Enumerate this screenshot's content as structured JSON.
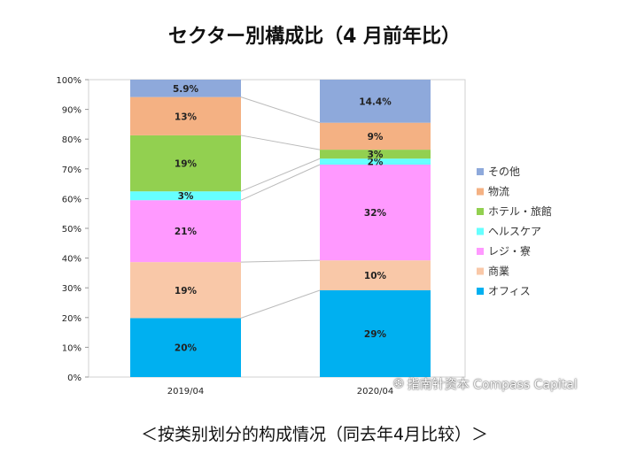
{
  "chart_data": {
    "type": "bar",
    "stacked": true,
    "title": "セクター別構成比（4 月前年比）",
    "caption": "＜按类别划分的构成情况（同去年4月比较）＞",
    "categories": [
      "2019/04",
      "2020/04"
    ],
    "ylim": [
      0,
      100
    ],
    "yticks": [
      "0%",
      "10%",
      "20%",
      "30%",
      "40%",
      "50%",
      "60%",
      "70%",
      "80%",
      "90%",
      "100%"
    ],
    "legend_position": "right",
    "series": [
      {
        "name": "オフィス",
        "color": "#00b0f0",
        "values": [
          20,
          29
        ],
        "labels": [
          "20%",
          "29%"
        ]
      },
      {
        "name": "商業",
        "color": "#f9c8a8",
        "values": [
          19,
          10
        ],
        "labels": [
          "19%",
          "10%"
        ]
      },
      {
        "name": "レジ・寮",
        "color": "#ff99ff",
        "values": [
          21,
          32
        ],
        "labels": [
          "21%",
          "32%"
        ]
      },
      {
        "name": "ヘルスケア",
        "color": "#66ffff",
        "values": [
          3,
          2
        ],
        "labels": [
          "3%",
          "2%"
        ]
      },
      {
        "name": "ホテル・旅館",
        "color": "#92d050",
        "values": [
          19,
          3
        ],
        "labels": [
          "19%",
          "3%"
        ]
      },
      {
        "name": "物流",
        "color": "#f4b183",
        "values": [
          13,
          9
        ],
        "labels": [
          "13%",
          "9%"
        ]
      },
      {
        "name": "その他",
        "color": "#8ea9db",
        "values": [
          5.9,
          14.4
        ],
        "labels": [
          "5.9%",
          "14.4%"
        ]
      }
    ]
  },
  "watermark": "指南针资本 Compass Capital"
}
